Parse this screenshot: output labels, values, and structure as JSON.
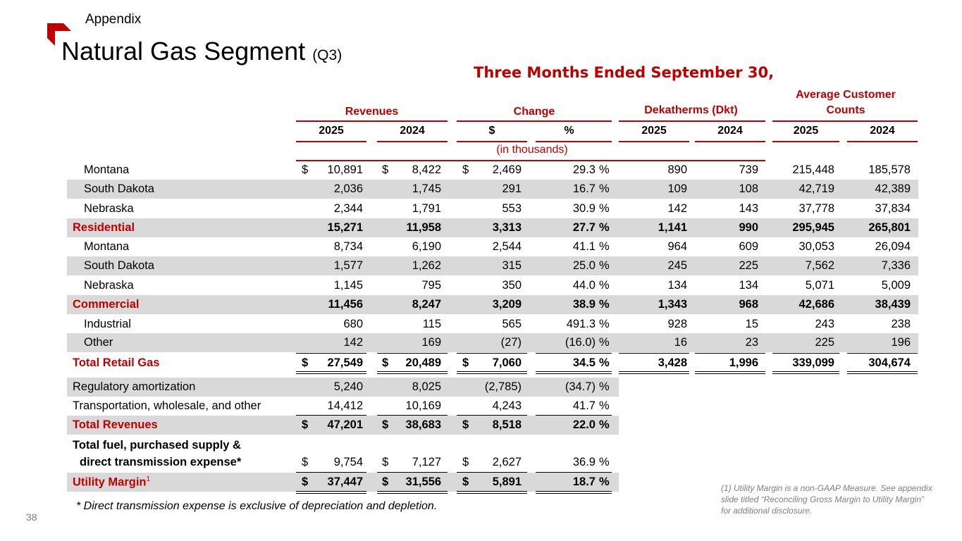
{
  "header": {
    "section": "Appendix",
    "title": "Natural Gas Segment",
    "title_suffix": "(Q3)",
    "brand_color": "#c00000"
  },
  "table": {
    "supertitle": "Three Months Ended September 30,",
    "groups": {
      "revenues": "Revenues",
      "change": "Change",
      "dkt": "Dekatherms (Dkt)",
      "customers": "Average Customer Counts"
    },
    "years": {
      "current": "2025",
      "prior": "2024"
    },
    "change_cols": {
      "dollar": "$",
      "percent": "%"
    },
    "units": "(in thousands)",
    "rows": [
      {
        "label": "Montana",
        "rev_2025": "10,891",
        "rev_2024": "8,422",
        "chg": "2,469",
        "chg_pct": "29.3",
        "dkt_2025": "890",
        "dkt_2024": "739",
        "cust_2025": "215,448",
        "cust_2024": "185,578"
      },
      {
        "label": "South Dakota",
        "rev_2025": "2,036",
        "rev_2024": "1,745",
        "chg": "291",
        "chg_pct": "16.7",
        "dkt_2025": "109",
        "dkt_2024": "108",
        "cust_2025": "42,719",
        "cust_2024": "42,389"
      },
      {
        "label": "Nebraska",
        "rev_2025": "2,344",
        "rev_2024": "1,791",
        "chg": "553",
        "chg_pct": "30.9",
        "dkt_2025": "142",
        "dkt_2024": "143",
        "cust_2025": "37,778",
        "cust_2024": "37,834"
      },
      {
        "label": "Residential",
        "rev_2025": "15,271",
        "rev_2024": "11,958",
        "chg": "3,313",
        "chg_pct": "27.7",
        "dkt_2025": "1,141",
        "dkt_2024": "990",
        "cust_2025": "295,945",
        "cust_2024": "265,801"
      },
      {
        "label": "Montana",
        "rev_2025": "8,734",
        "rev_2024": "6,190",
        "chg": "2,544",
        "chg_pct": "41.1",
        "dkt_2025": "964",
        "dkt_2024": "609",
        "cust_2025": "30,053",
        "cust_2024": "26,094"
      },
      {
        "label": "South Dakota",
        "rev_2025": "1,577",
        "rev_2024": "1,262",
        "chg": "315",
        "chg_pct": "25.0",
        "dkt_2025": "245",
        "dkt_2024": "225",
        "cust_2025": "7,562",
        "cust_2024": "7,336"
      },
      {
        "label": "Nebraska",
        "rev_2025": "1,145",
        "rev_2024": "795",
        "chg": "350",
        "chg_pct": "44.0",
        "dkt_2025": "134",
        "dkt_2024": "134",
        "cust_2025": "5,071",
        "cust_2024": "5,009"
      },
      {
        "label": "Commercial",
        "rev_2025": "11,456",
        "rev_2024": "8,247",
        "chg": "3,209",
        "chg_pct": "38.9",
        "dkt_2025": "1,343",
        "dkt_2024": "968",
        "cust_2025": "42,686",
        "cust_2024": "38,439"
      },
      {
        "label": "Industrial",
        "rev_2025": "680",
        "rev_2024": "115",
        "chg": "565",
        "chg_pct": "491.3",
        "dkt_2025": "928",
        "dkt_2024": "15",
        "cust_2025": "243",
        "cust_2024": "238"
      },
      {
        "label": "Other",
        "rev_2025": "142",
        "rev_2024": "169",
        "chg": "(27)",
        "chg_pct": "(16.0)",
        "dkt_2025": "16",
        "dkt_2024": "23",
        "cust_2025": "225",
        "cust_2024": "196"
      },
      {
        "label": "Total Retail Gas",
        "rev_2025": "27,549",
        "rev_2024": "20,489",
        "chg": "7,060",
        "chg_pct": "34.5",
        "dkt_2025": "3,428",
        "dkt_2024": "1,996",
        "cust_2025": "339,099",
        "cust_2024": "304,674"
      },
      {
        "label": "Regulatory amortization",
        "rev_2025": "5,240",
        "rev_2024": "8,025",
        "chg": "(2,785)",
        "chg_pct": "(34.7)"
      },
      {
        "label": "Transportation, wholesale, and other",
        "rev_2025": "14,412",
        "rev_2024": "10,169",
        "chg": "4,243",
        "chg_pct": "41.7"
      },
      {
        "label": "Total Revenues",
        "rev_2025": "47,201",
        "rev_2024": "38,683",
        "chg": "8,518",
        "chg_pct": "22.0"
      },
      {
        "label_line1": "Total fuel, purchased supply &",
        "label_line2": "direct transmission expense*",
        "rev_2025": "9,754",
        "rev_2024": "7,127",
        "chg": "2,627",
        "chg_pct": "36.9"
      },
      {
        "label": "Utility Margin",
        "label_sup": "1",
        "rev_2025": "37,447",
        "rev_2024": "31,556",
        "chg": "5,891",
        "chg_pct": "18.7"
      }
    ],
    "currency_symbol": "$",
    "percent_symbol": "%"
  },
  "footnotes": {
    "left": "* Direct transmission expense is exclusive of depreciation and depletion.",
    "right": "(1) Utility Margin is a non-GAAP Measure.  See appendix slide titled “Reconciling Gross Margin to Utility Margin” for additional disclosure."
  },
  "page_number": "38"
}
